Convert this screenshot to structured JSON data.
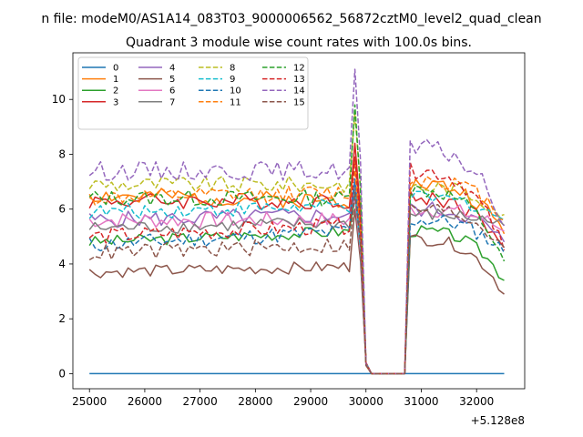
{
  "chart_data": {
    "type": "line",
    "suptitle": "n file: modeM0/AS1A14_083T03_9000006562_56872cztM0_level2_quad_clean",
    "title": "Quadrant 3 module wise count rates with 100.0s bins.",
    "xlabel": "",
    "ylabel": "",
    "x_offset_label": "+5.128e8",
    "xlim": [
      24700,
      32870
    ],
    "ylim": [
      -0.55,
      11.7
    ],
    "xticks": [
      25000,
      26000,
      27000,
      28000,
      29000,
      30000,
      31000,
      32000
    ],
    "xtick_labels": [
      "25000",
      "26000",
      "27000",
      "28000",
      "29000",
      "30000",
      "31000",
      "32000"
    ],
    "yticks": [
      0,
      2,
      4,
      6,
      8,
      10
    ],
    "ytick_labels": [
      "0",
      "2",
      "4",
      "6",
      "8",
      "10"
    ],
    "grid": false,
    "legend_position": "top-left",
    "legend_columns": 4,
    "x_start": 25000,
    "x_step": 100,
    "x_count": 76,
    "gap_start_index": 50,
    "gap_end_index": 58,
    "series": [
      {
        "name": "0",
        "color": "#1f77b4",
        "dash": "solid",
        "level": 0.0,
        "amp": 0.0,
        "trend": 0.0,
        "end_peak": 0.0,
        "start2": 0.0,
        "end2": 0.0,
        "seed": 1
      },
      {
        "name": "1",
        "color": "#ff7f0e",
        "dash": "solid",
        "level": 6.5,
        "amp": 0.3,
        "trend": -0.2,
        "end_peak": 7.9,
        "start2": 6.9,
        "end2": 5.1,
        "seed": 2
      },
      {
        "name": "2",
        "color": "#2ca02c",
        "dash": "solid",
        "level": 4.8,
        "amp": 0.22,
        "trend": 0.4,
        "end_peak": 6.4,
        "start2": 5.2,
        "end2": 3.4,
        "seed": 3
      },
      {
        "name": "3",
        "color": "#d62728",
        "dash": "solid",
        "level": 6.3,
        "amp": 0.3,
        "trend": 0.0,
        "end_peak": 8.4,
        "start2": 6.4,
        "end2": 4.6,
        "seed": 4
      },
      {
        "name": "4",
        "color": "#9467bd",
        "dash": "solid",
        "level": 5.6,
        "amp": 0.3,
        "trend": 0.2,
        "end_peak": 7.0,
        "start2": 6.0,
        "end2": 4.8,
        "seed": 5
      },
      {
        "name": "5",
        "color": "#8c564b",
        "dash": "solid",
        "level": 3.7,
        "amp": 0.22,
        "trend": 0.2,
        "end_peak": 6.0,
        "start2": 4.9,
        "end2": 2.9,
        "seed": 6
      },
      {
        "name": "6",
        "color": "#e377c2",
        "dash": "solid",
        "level": 5.6,
        "amp": 0.3,
        "trend": 0.0,
        "end_peak": 6.4,
        "start2": 6.0,
        "end2": 5.2,
        "seed": 7
      },
      {
        "name": "7",
        "color": "#7f7f7f",
        "dash": "solid",
        "level": 5.3,
        "amp": 0.25,
        "trend": 0.2,
        "end_peak": 6.8,
        "start2": 5.8,
        "end2": 5.4,
        "seed": 8
      },
      {
        "name": "8",
        "color": "#bcbd22",
        "dash": "dashed",
        "level": 6.9,
        "amp": 0.3,
        "trend": 0.0,
        "end_peak": 9.5,
        "start2": 6.8,
        "end2": 5.8,
        "seed": 9
      },
      {
        "name": "9",
        "color": "#17becf",
        "dash": "dashed",
        "level": 5.9,
        "amp": 0.28,
        "trend": 0.2,
        "end_peak": 6.6,
        "start2": 6.4,
        "end2": 5.6,
        "seed": 10
      },
      {
        "name": "10",
        "color": "#1f77b4",
        "dash": "dashed",
        "level": 4.7,
        "amp": 0.3,
        "trend": 0.5,
        "end_peak": 7.1,
        "start2": 5.6,
        "end2": 4.4,
        "seed": 11
      },
      {
        "name": "11",
        "color": "#ff7f0e",
        "dash": "dashed",
        "level": 6.4,
        "amp": 0.3,
        "trend": 0.2,
        "end_peak": 7.4,
        "start2": 7.1,
        "end2": 5.6,
        "seed": 12
      },
      {
        "name": "12",
        "color": "#2ca02c",
        "dash": "dashed",
        "level": 6.4,
        "amp": 0.3,
        "trend": 0.0,
        "end_peak": 9.8,
        "start2": 6.7,
        "end2": 4.1,
        "seed": 13
      },
      {
        "name": "13",
        "color": "#d62728",
        "dash": "dashed",
        "level": 5.0,
        "amp": 0.3,
        "trend": 0.4,
        "end_peak": 7.9,
        "start2": 7.4,
        "end2": 4.5,
        "seed": 14
      },
      {
        "name": "14",
        "color": "#9467bd",
        "dash": "dashed",
        "level": 7.4,
        "amp": 0.35,
        "trend": 0.0,
        "end_peak": 11.1,
        "start2": 8.2,
        "end2": 5.4,
        "seed": 15
      },
      {
        "name": "15",
        "color": "#8c564b",
        "dash": "dashed",
        "level": 4.4,
        "amp": 0.3,
        "trend": 0.3,
        "end_peak": 6.6,
        "start2": 6.0,
        "end2": 4.6,
        "seed": 16
      }
    ]
  }
}
